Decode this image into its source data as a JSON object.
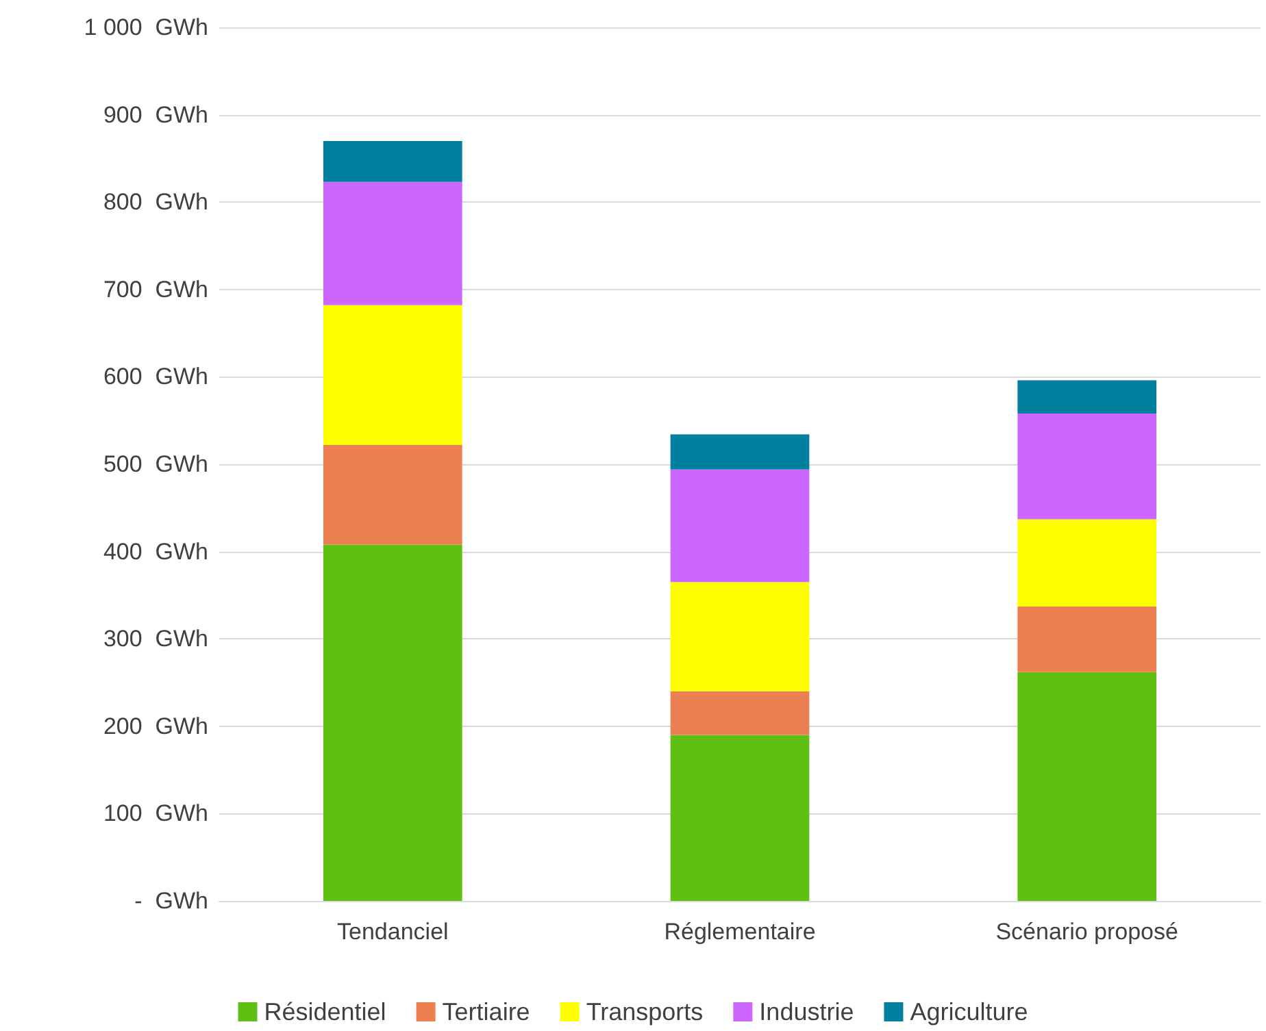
{
  "chart_data": {
    "type": "bar",
    "stacked": true,
    "categories": [
      "Tendanciel",
      "Réglementaire",
      "Scénario proposé"
    ],
    "series": [
      {
        "name": "Résidentiel",
        "color": "#5fbf13",
        "values": [
          408,
          190,
          262
        ]
      },
      {
        "name": "Tertiaire",
        "color": "#ed8050",
        "values": [
          114,
          50,
          75
        ]
      },
      {
        "name": "Transports",
        "color": "#ffff00",
        "values": [
          160,
          125,
          100
        ]
      },
      {
        "name": "Industrie",
        "color": "#cc66ff",
        "values": [
          141,
          129,
          121
        ]
      },
      {
        "name": "Agriculture",
        "color": "#00809f",
        "values": [
          47,
          40,
          38
        ]
      }
    ],
    "ylim": [
      0,
      1000
    ],
    "yticks": [
      {
        "value": 0,
        "label": "-  GWh"
      },
      {
        "value": 100,
        "label": "100  GWh"
      },
      {
        "value": 200,
        "label": "200  GWh"
      },
      {
        "value": 300,
        "label": "300  GWh"
      },
      {
        "value": 400,
        "label": "400  GWh"
      },
      {
        "value": 500,
        "label": "500  GWh"
      },
      {
        "value": 600,
        "label": "600  GWh"
      },
      {
        "value": 700,
        "label": "700  GWh"
      },
      {
        "value": 800,
        "label": "800  GWh"
      },
      {
        "value": 900,
        "label": "900  GWh"
      },
      {
        "value": 1000,
        "label": "1 000  GWh"
      }
    ],
    "grid": "y",
    "legend": "bottom"
  }
}
